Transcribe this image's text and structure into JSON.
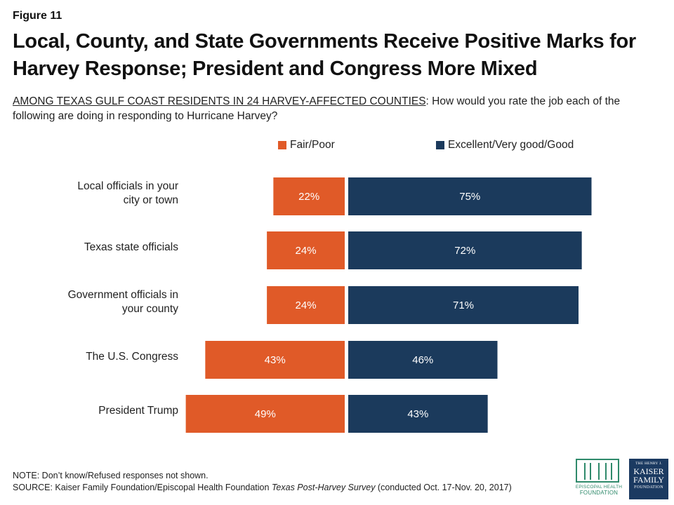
{
  "figure_label": "Figure 11",
  "title": "Local, County, and State Governments Receive Positive Marks for Harvey Response; President and Congress More Mixed",
  "subtitle_lead": "AMONG TEXAS GULF COAST RESIDENTS IN 24 HARVEY-AFFECTED COUNTIES",
  "subtitle_rest": ": How would you rate the job each of the following are doing in responding to Hurricane Harvey?",
  "chart_data": {
    "type": "bar",
    "orientation": "horizontal-diverging",
    "categories": [
      "Local officials in your city or town",
      "Texas state officials",
      "Government officials in your county",
      "The U.S. Congress",
      "President Trump"
    ],
    "category_lines": [
      [
        "Local officials in your",
        "city or town"
      ],
      [
        "Texas state officials"
      ],
      [
        "Government officials in",
        "your county"
      ],
      [
        "The U.S. Congress"
      ],
      [
        "President Trump"
      ]
    ],
    "series": [
      {
        "name": "Fair/Poor",
        "color": "#e05a28",
        "values": [
          22,
          24,
          24,
          43,
          49
        ],
        "labels": [
          "22%",
          "24%",
          "24%",
          "43%",
          "49%"
        ]
      },
      {
        "name": "Excellent/Very good/Good",
        "color": "#1b3a5c",
        "values": [
          75,
          72,
          71,
          46,
          43
        ],
        "labels": [
          "75%",
          "72%",
          "71%",
          "46%",
          "43%"
        ]
      }
    ],
    "legend_position": "top",
    "grid": false,
    "value_unit": "%"
  },
  "note": "NOTE: Don’t know/Refused responses not shown.",
  "source_prefix": "SOURCE: Kaiser Family Foundation/Episcopal Health Foundation ",
  "source_italic": "Texas Post-Harvey Survey",
  "source_suffix": " (conducted Oct. 17-Nov. 20, 2017)",
  "logo_ehf": {
    "line1": "EPISCOPAL HEALTH",
    "line2": "FOUNDATION"
  },
  "logo_kff": {
    "line1": "THE HENRY J.",
    "line2": "KAISER",
    "line3": "FAMILY",
    "line4": "FOUNDATION"
  }
}
